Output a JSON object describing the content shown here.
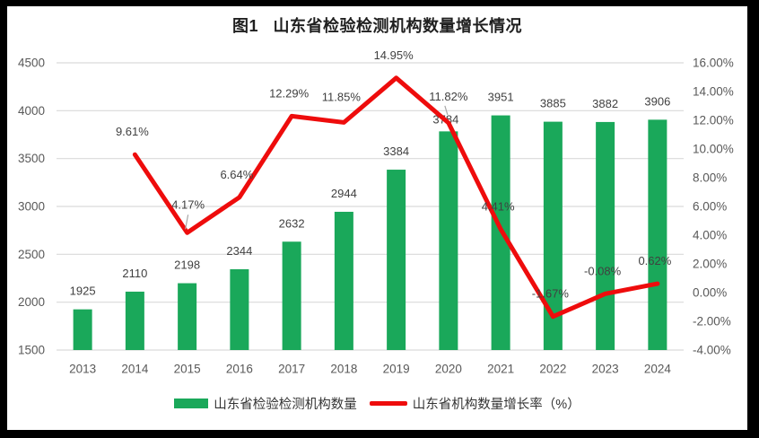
{
  "chart_data": {
    "type": "combo_bar_line",
    "title": "图1   山东省检验检测机构数量增长情况",
    "categories": [
      "2013",
      "2014",
      "2015",
      "2016",
      "2017",
      "2018",
      "2019",
      "2020",
      "2021",
      "2022",
      "2023",
      "2024"
    ],
    "series": [
      {
        "name": "山东省检验检测机构数量",
        "type": "bar",
        "axis": "left",
        "values": [
          1925,
          2110,
          2198,
          2344,
          2632,
          2944,
          3384,
          3784,
          3951,
          3885,
          3882,
          3906
        ],
        "data_labels": [
          "1925",
          "2110",
          "2198",
          "2344",
          "2632",
          "2944",
          "3384",
          "3784",
          "3951",
          "3885",
          "3882",
          "3906"
        ]
      },
      {
        "name": "山东省机构数量增长率（%）",
        "type": "line",
        "axis": "right",
        "values": [
          null,
          9.61,
          4.17,
          6.64,
          12.29,
          11.85,
          14.95,
          11.82,
          4.41,
          -1.67,
          -0.08,
          0.62
        ],
        "data_labels": [
          "",
          "9.61%",
          "4.17%",
          "6.64%",
          "12.29%",
          "11.85%",
          "14.95%",
          "11.82%",
          "4.41%",
          "-1.67%",
          "-0.08%",
          "0.62%"
        ]
      }
    ],
    "left_axis": {
      "min": 1500,
      "max": 4500,
      "step": 500,
      "tick_labels": [
        "4500",
        "4000",
        "3500",
        "3000",
        "2500",
        "2000",
        "1500"
      ]
    },
    "right_axis": {
      "min": -4,
      "max": 16,
      "step": 2,
      "tick_labels": [
        "16.00%",
        "14.00%",
        "12.00%",
        "10.00%",
        "8.00%",
        "6.00%",
        "4.00%",
        "2.00%",
        "0.00%",
        "-2.00%",
        "-4.00%"
      ]
    },
    "gridlines": "horizontal",
    "legend_position": "bottom"
  },
  "colors": {
    "bar": "#1AA85A",
    "line": "#EE0C0C",
    "grid": "#D9D9D9",
    "axis_text": "#595959",
    "data_label_text": "#404040",
    "title_text": "#1F1F1F",
    "legend_text": "#333333",
    "leader": "#A6A6A6",
    "background": "#FFFFFF",
    "frame": "#000000"
  }
}
